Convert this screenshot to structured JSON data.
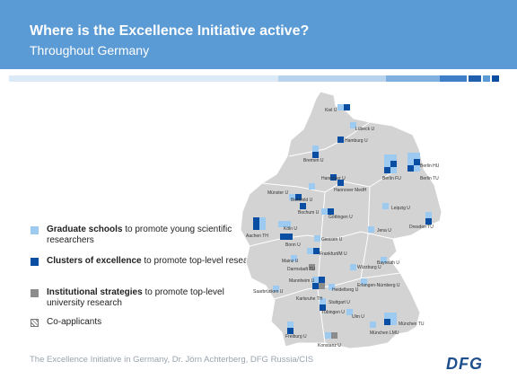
{
  "header": {
    "title": "Where is the Excellence Initiative active?",
    "subtitle": "Throughout Germany"
  },
  "legend": {
    "graduate_schools": {
      "bold": "Graduate schools",
      "rest": " to promote young scientific researchers",
      "color": "#9ccaf0"
    },
    "clusters": {
      "bold": "Clusters of excellence",
      "rest": " to promote top-level research",
      "color": "#0a4ea3"
    },
    "strategies": {
      "bold": "Institutional strategies",
      "rest": " to promote top-level university research",
      "color": "#8c8c8c"
    },
    "coapplicants": {
      "label": "Co-applicants"
    }
  },
  "map": {
    "cities": [
      "Kiel U",
      "Lübeck U",
      "Hamburg U",
      "Bremen U",
      "Hannover U",
      "Hannover MedH",
      "Berlin HU",
      "Berlin FU",
      "Berlin TU",
      "Münster U",
      "Bielefeld U",
      "Bochum U",
      "Göttingen U",
      "Leipzig U",
      "Aachen TH",
      "Köln U",
      "Bonn U",
      "Giessen U",
      "Jena U",
      "Dresden TU",
      "Mainz U",
      "Frankfurt/M U",
      "Darmstadt TU",
      "Würzburg U",
      "Bayreuth U",
      "Mannheim U",
      "Saarbrücken U",
      "Heidelberg U",
      "Erlangen-Nürnberg U",
      "Karlsruhe TH",
      "Stuttgart U",
      "Tübingen U",
      "Ulm U",
      "Freiburg U",
      "München TU",
      "München LMU",
      "Konstanz U"
    ]
  },
  "footer": {
    "text": "The Excellence Initiative in Germany, Dr. Jörn Achterberg, DFG Russia/CIS",
    "logo": "DFG"
  }
}
